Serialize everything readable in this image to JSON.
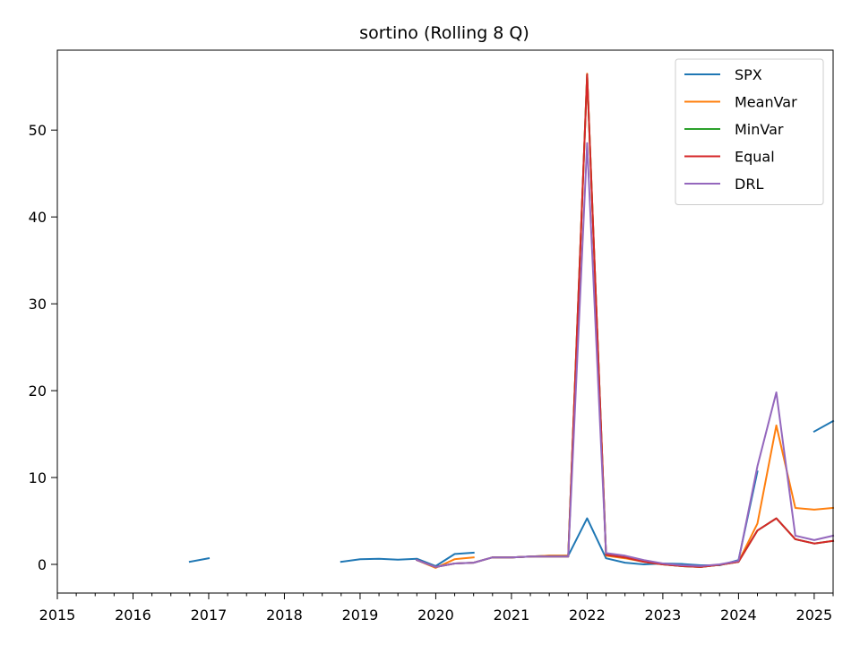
{
  "chart_data": {
    "type": "line",
    "title": "sortino (Rolling 8 Q)",
    "xlabel": "",
    "ylabel": "",
    "xlim": [
      2015.0,
      2025.25
    ],
    "ylim": [
      -3.3,
      59.2
    ],
    "x_ticks": [
      2015,
      2016,
      2017,
      2018,
      2019,
      2020,
      2021,
      2022,
      2023,
      2024,
      2025
    ],
    "x_tick_labels": [
      "2015",
      "2016",
      "2017",
      "2018",
      "2019",
      "2020",
      "2021",
      "2022",
      "2023",
      "2024",
      "2025"
    ],
    "y_ticks": [
      0,
      10,
      20,
      30,
      40,
      50
    ],
    "y_tick_labels": [
      "0",
      "10",
      "20",
      "30",
      "40",
      "50"
    ],
    "grid": false,
    "legend_position": "top-right",
    "series": [
      {
        "name": "SPX",
        "color": "#1f77b4",
        "segments": [
          [
            [
              2016.75,
              0.3
            ],
            [
              2017.0,
              0.7
            ]
          ],
          [
            [
              2018.75,
              0.3
            ],
            [
              2019.0,
              0.6
            ],
            [
              2019.25,
              0.65
            ],
            [
              2019.5,
              0.55
            ],
            [
              2019.75,
              0.65
            ],
            [
              2020.0,
              -0.2
            ],
            [
              2020.25,
              1.2
            ],
            [
              2020.5,
              1.35
            ]
          ],
          [
            [
              2020.75,
              0.8
            ],
            [
              2021.0,
              0.8
            ],
            [
              2021.25,
              0.9
            ],
            [
              2021.5,
              1.0
            ],
            [
              2021.75,
              1.0
            ],
            [
              2022.0,
              5.3
            ],
            [
              2022.25,
              0.7
            ],
            [
              2022.5,
              0.2
            ],
            [
              2022.75,
              0.0
            ],
            [
              2023.0,
              0.1
            ],
            [
              2023.25,
              0.05
            ],
            [
              2023.5,
              -0.1
            ],
            [
              2023.75,
              -0.1
            ],
            [
              2024.0,
              0.5
            ],
            [
              2024.25,
              10.7
            ]
          ],
          [
            [
              2025.0,
              15.3
            ],
            [
              2025.25,
              16.5
            ]
          ]
        ]
      },
      {
        "name": "MeanVar",
        "color": "#ff7f0e",
        "segments": [
          [
            [
              2019.75,
              0.5
            ],
            [
              2020.0,
              -0.4
            ],
            [
              2020.25,
              0.6
            ],
            [
              2020.5,
              0.8
            ]
          ],
          [
            [
              2020.75,
              0.8
            ],
            [
              2021.0,
              0.8
            ],
            [
              2021.25,
              0.9
            ],
            [
              2021.5,
              1.0
            ],
            [
              2021.75,
              1.0
            ],
            [
              2022.0,
              56.5
            ],
            [
              2022.25,
              1.0
            ],
            [
              2022.5,
              0.7
            ],
            [
              2022.75,
              0.3
            ],
            [
              2023.0,
              0.0
            ],
            [
              2023.25,
              -0.2
            ],
            [
              2023.5,
              -0.3
            ],
            [
              2023.75,
              -0.05
            ],
            [
              2024.0,
              0.3
            ],
            [
              2024.25,
              4.7
            ],
            [
              2024.5,
              16.0
            ],
            [
              2024.75,
              6.5
            ],
            [
              2025.0,
              6.3
            ],
            [
              2025.25,
              6.5
            ]
          ]
        ]
      },
      {
        "name": "MinVar",
        "color": "#2ca02c",
        "segments": [
          [
            [
              2019.75,
              0.5
            ],
            [
              2020.0,
              -0.3
            ],
            [
              2020.25,
              0.1
            ],
            [
              2020.5,
              0.2
            ],
            [
              2020.75,
              0.8
            ],
            [
              2021.0,
              0.8
            ],
            [
              2021.25,
              0.9
            ],
            [
              2021.5,
              0.9
            ],
            [
              2021.75,
              0.9
            ],
            [
              2022.0,
              56.4
            ],
            [
              2022.25,
              1.1
            ],
            [
              2022.5,
              0.8
            ],
            [
              2022.75,
              0.3
            ],
            [
              2023.0,
              0.0
            ],
            [
              2023.25,
              -0.2
            ],
            [
              2023.5,
              -0.3
            ],
            [
              2023.75,
              -0.05
            ],
            [
              2024.0,
              0.3
            ],
            [
              2024.25,
              3.9
            ],
            [
              2024.5,
              5.3
            ],
            [
              2024.75,
              2.9
            ],
            [
              2025.0,
              2.4
            ],
            [
              2025.25,
              2.7
            ]
          ]
        ]
      },
      {
        "name": "Equal",
        "color": "#d62728",
        "segments": [
          [
            [
              2019.75,
              0.5
            ],
            [
              2020.0,
              -0.3
            ],
            [
              2020.25,
              0.1
            ],
            [
              2020.5,
              0.2
            ],
            [
              2020.75,
              0.8
            ],
            [
              2021.0,
              0.8
            ],
            [
              2021.25,
              0.9
            ],
            [
              2021.5,
              0.9
            ],
            [
              2021.75,
              0.9
            ],
            [
              2022.0,
              56.4
            ],
            [
              2022.25,
              1.1
            ],
            [
              2022.5,
              0.8
            ],
            [
              2022.75,
              0.3
            ],
            [
              2023.0,
              0.0
            ],
            [
              2023.25,
              -0.2
            ],
            [
              2023.5,
              -0.3
            ],
            [
              2023.75,
              -0.05
            ],
            [
              2024.0,
              0.3
            ],
            [
              2024.25,
              3.9
            ],
            [
              2024.5,
              5.3
            ],
            [
              2024.75,
              2.9
            ],
            [
              2025.0,
              2.4
            ],
            [
              2025.25,
              2.7
            ]
          ]
        ]
      },
      {
        "name": "DRL",
        "color": "#9467bd",
        "segments": [
          [
            [
              2019.75,
              0.5
            ],
            [
              2020.0,
              -0.3
            ],
            [
              2020.25,
              0.1
            ],
            [
              2020.5,
              0.2
            ],
            [
              2020.75,
              0.8
            ],
            [
              2021.0,
              0.8
            ],
            [
              2021.25,
              0.9
            ],
            [
              2021.5,
              0.9
            ],
            [
              2021.75,
              0.9
            ],
            [
              2022.0,
              48.5
            ],
            [
              2022.25,
              1.3
            ],
            [
              2022.5,
              1.0
            ],
            [
              2022.75,
              0.5
            ],
            [
              2023.0,
              0.1
            ],
            [
              2023.25,
              -0.1
            ],
            [
              2023.5,
              -0.2
            ],
            [
              2023.75,
              0.0
            ],
            [
              2024.0,
              0.4
            ],
            [
              2024.25,
              11.3
            ],
            [
              2024.5,
              19.8
            ],
            [
              2024.75,
              3.3
            ],
            [
              2025.0,
              2.8
            ],
            [
              2025.25,
              3.3
            ]
          ]
        ]
      }
    ]
  }
}
